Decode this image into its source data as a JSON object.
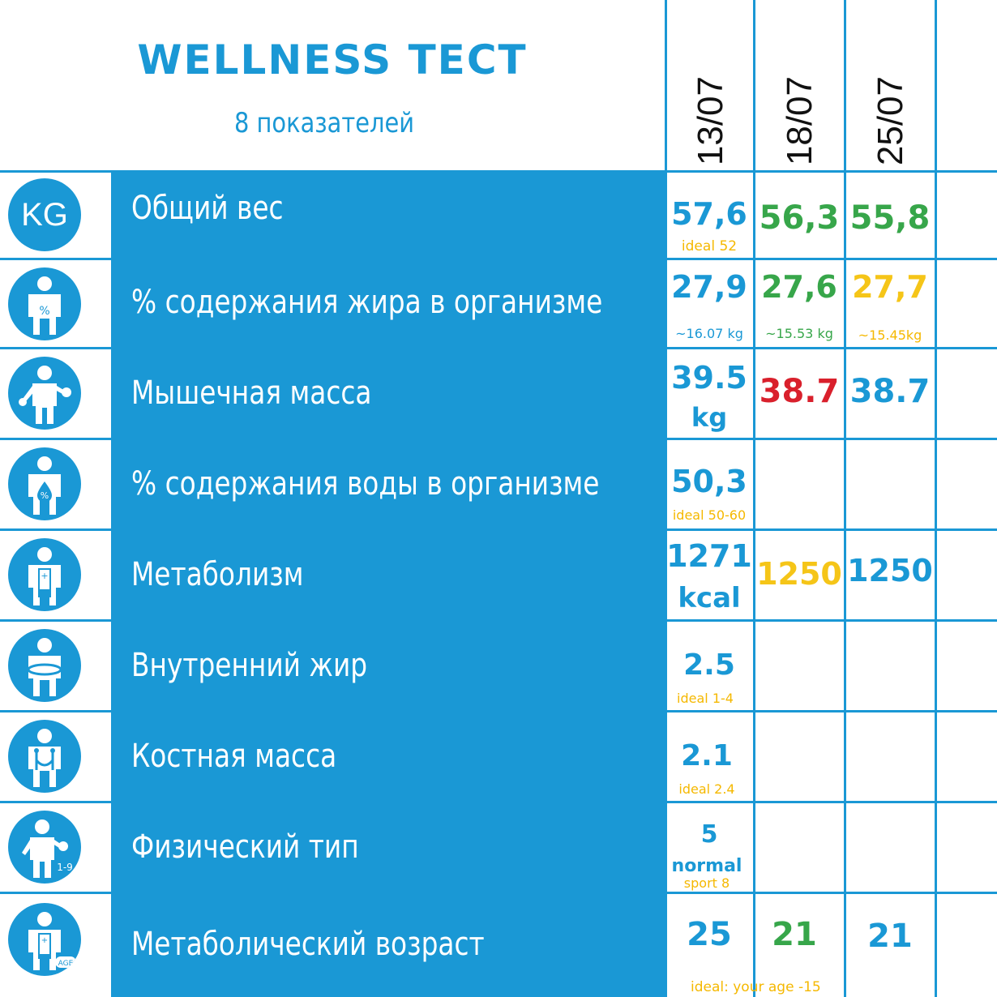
{
  "header": {
    "title": "WELLNESS TECT",
    "subtitle": "8 показателей",
    "dates": [
      "13/07",
      "18/07",
      "25/07"
    ]
  },
  "colors": {
    "accent": "#1a98d5",
    "good": "#37a64a",
    "warn": "#f5c518",
    "bad": "#d9202c"
  },
  "rows": [
    {
      "icon": "kg-icon",
      "label": "Общий вес",
      "v1": "57,6",
      "n1": "ideal 52",
      "v2": "56,3",
      "v3": "55,8"
    },
    {
      "icon": "body-fat-percent-icon",
      "label": "% содержания жира в организме",
      "v1": "27,9",
      "n1": "~16.07 kg",
      "v2": "27,6",
      "n2": "~15.53 kg",
      "v3": "27,7",
      "n3": "~15.45kg"
    },
    {
      "icon": "muscle-mass-icon",
      "label": "Мышечная масса",
      "v1": "39.5",
      "u1": "kg",
      "v2": "38.7",
      "v3": "38.7"
    },
    {
      "icon": "body-water-icon",
      "label": "% содержания воды в организме",
      "v1": "50,3",
      "n1": "ideal 50-60"
    },
    {
      "icon": "metabolism-battery-icon",
      "label": "Метаболизм",
      "v1": "1271",
      "u1": "kcal",
      "v2": "1250",
      "v3": "1250"
    },
    {
      "icon": "visceral-fat-icon",
      "label": "Внутренний жир",
      "v1": "2.5",
      "n1": "ideal 1-4"
    },
    {
      "icon": "bone-mass-icon",
      "label": "Костная масса",
      "v1": "2.1",
      "n1": "ideal 2.4"
    },
    {
      "icon": "physique-type-icon",
      "icon_text": "1-9",
      "label": "Физический тип",
      "v1": "5",
      "u1": "normal",
      "n1": "sport 8"
    },
    {
      "icon": "metabolic-age-icon",
      "icon_text": "AGE",
      "label": "Метаболический возраст",
      "v1": "25",
      "v2": "21",
      "v3": "21",
      "n1": "ideal: your age -15"
    }
  ]
}
